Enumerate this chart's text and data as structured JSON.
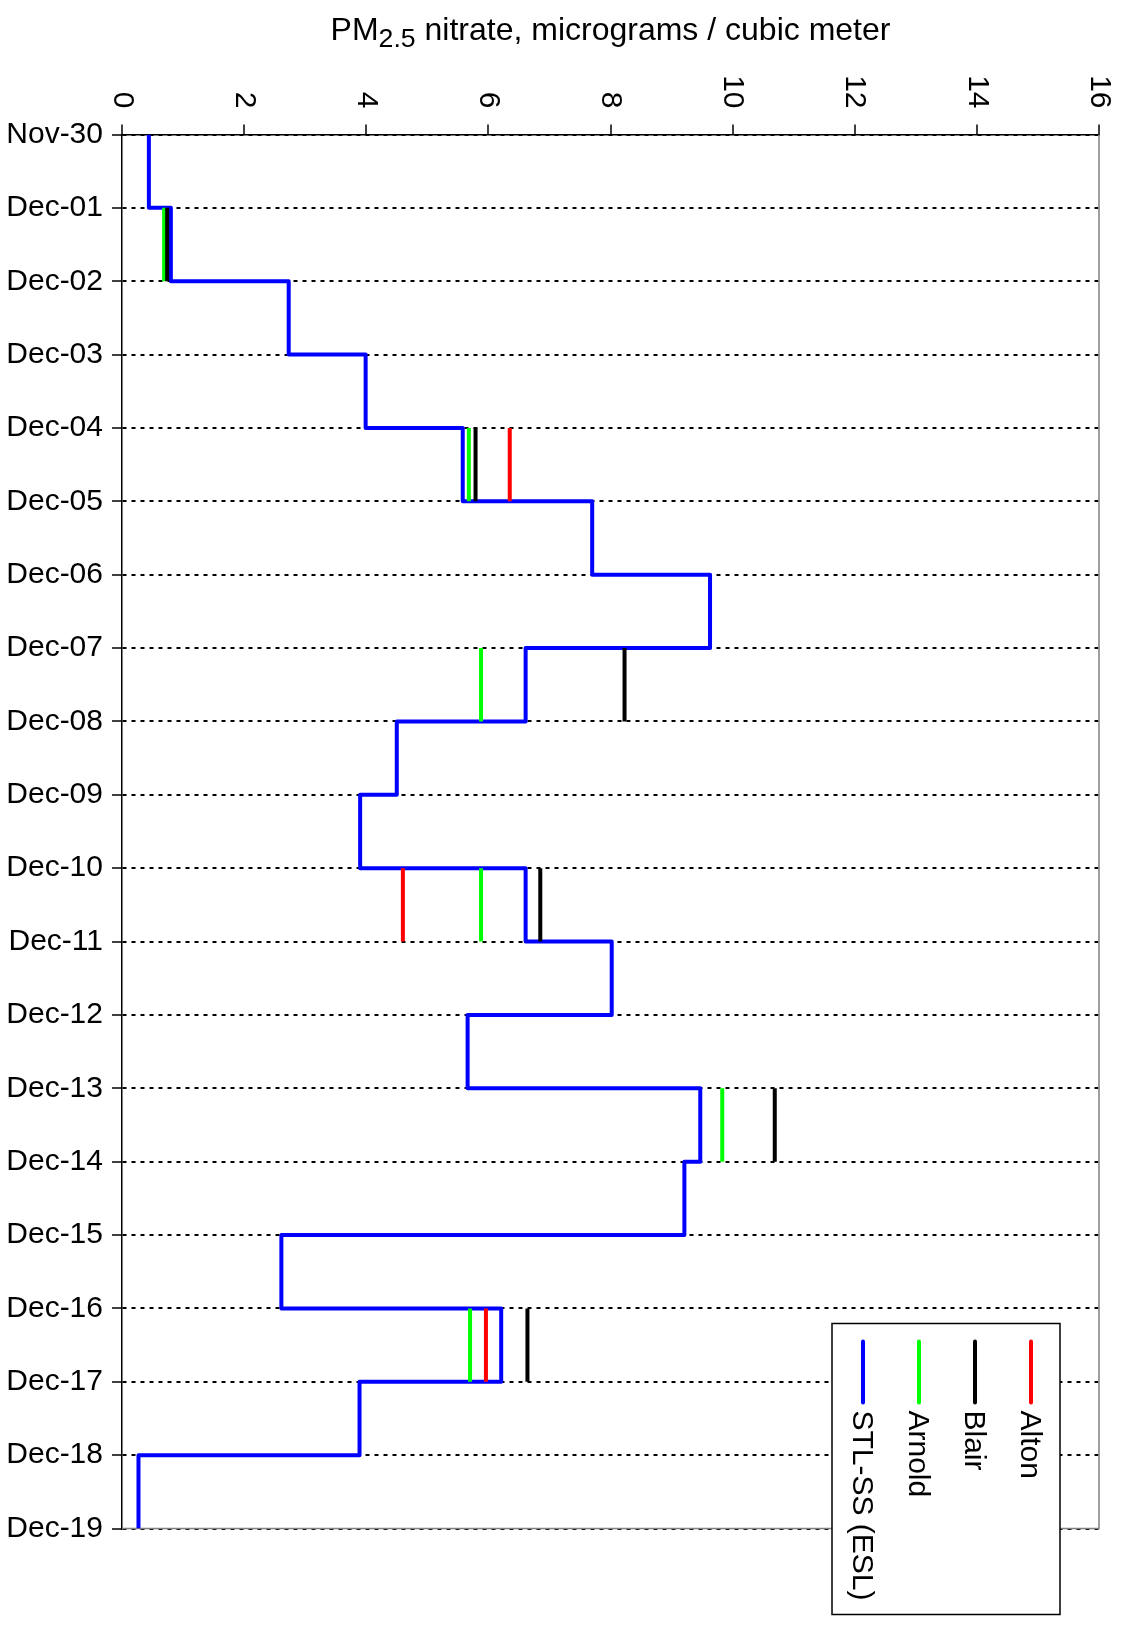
{
  "chart_data": {
    "type": "step",
    "orientation": "horizontal",
    "xlabel": "PM$_{2.5}$ nitrate, micrograms / cubic meter",
    "categories": [
      "Nov-30",
      "Dec-01",
      "Dec-02",
      "Dec-03",
      "Dec-04",
      "Dec-05",
      "Dec-06",
      "Dec-07",
      "Dec-08",
      "Dec-09",
      "Dec-10",
      "Dec-11",
      "Dec-12",
      "Dec-13",
      "Dec-14",
      "Dec-15",
      "Dec-16",
      "Dec-17",
      "Dec-18",
      "Dec-19"
    ],
    "series": [
      {
        "name": "Alton",
        "color": "#ff0000",
        "values": [
          null,
          null,
          null,
          null,
          6.35,
          6.35,
          null,
          null,
          null,
          null,
          4.6,
          4.6,
          null,
          null,
          null,
          null,
          5.96,
          5.96,
          null,
          null
        ]
      },
      {
        "name": "Blair",
        "color": "#000000",
        "values": [
          null,
          0.74,
          0.74,
          null,
          5.79,
          5.79,
          null,
          8.23,
          8.23,
          null,
          6.85,
          6.85,
          null,
          10.69,
          10.69,
          null,
          6.64,
          6.64,
          null,
          null
        ]
      },
      {
        "name": "Arnold",
        "color": "#00ff00",
        "values": [
          null,
          0.69,
          0.69,
          null,
          5.68,
          5.68,
          null,
          5.88,
          5.88,
          null,
          5.88,
          5.88,
          null,
          9.83,
          9.83,
          null,
          5.7,
          5.7,
          null,
          null
        ]
      },
      {
        "name": "STL-SS (ESL)",
        "color": "#0000ff",
        "values": [
          0.44,
          0.8,
          2.73,
          3.99,
          5.58,
          7.7,
          9.63,
          6.61,
          4.5,
          3.9,
          6.61,
          8.02,
          5.66,
          9.47,
          9.21,
          2.61,
          6.21,
          3.89,
          0.27,
          0.27
        ]
      }
    ],
    "xlim": [
      0,
      16
    ],
    "xticks": [
      0,
      2,
      4,
      6,
      8,
      10,
      12,
      14,
      16
    ],
    "grid": "y",
    "legend": "bottom right"
  }
}
